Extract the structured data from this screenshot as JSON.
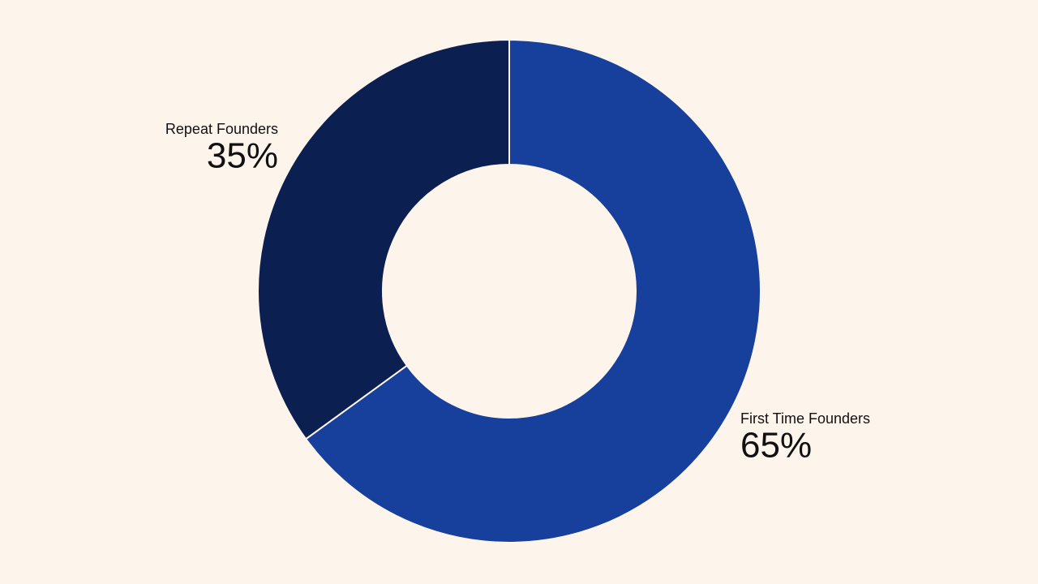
{
  "chart_data": {
    "type": "donut",
    "categories": [
      "First Time Founders",
      "Repeat Founders"
    ],
    "values": [
      65,
      35
    ],
    "value_labels": [
      "65%",
      "35%"
    ],
    "colors": [
      "#173f9c",
      "#0b2050"
    ]
  }
}
